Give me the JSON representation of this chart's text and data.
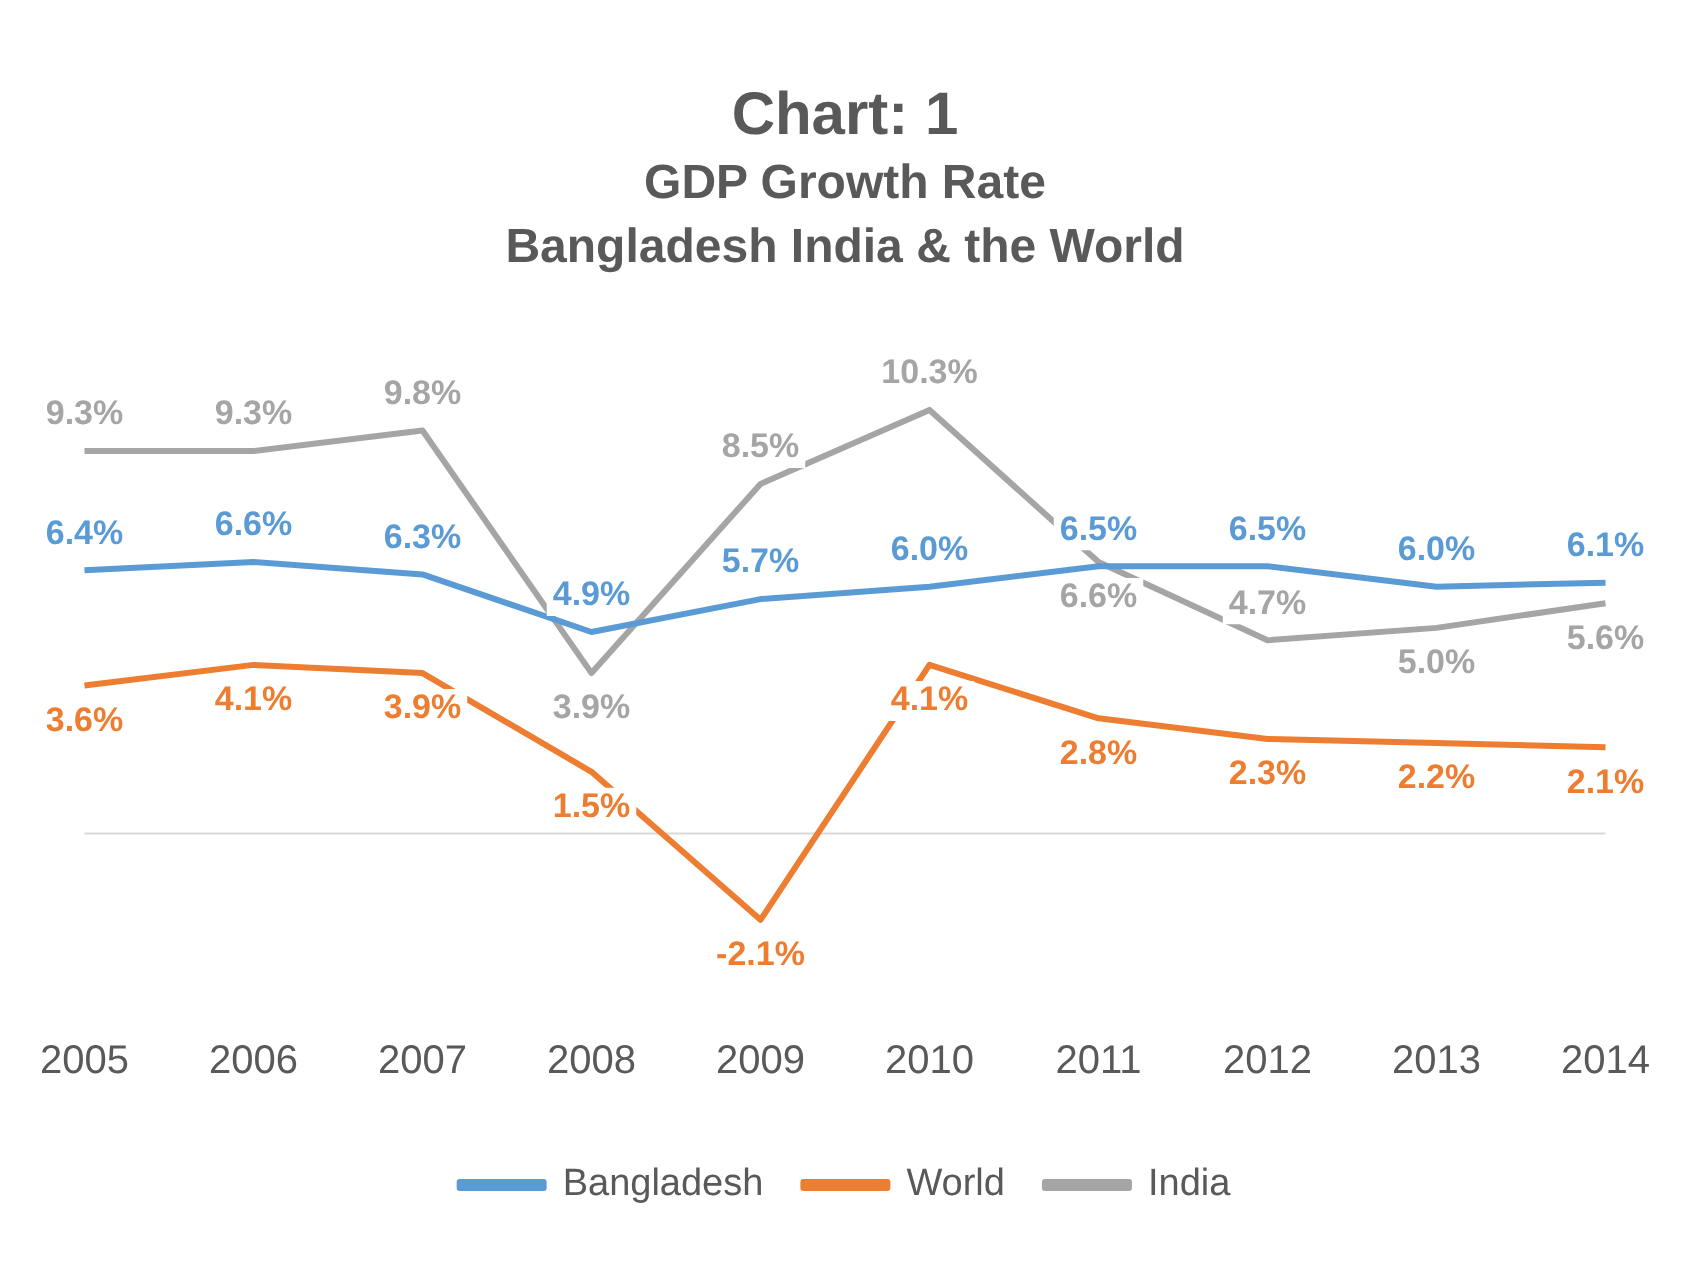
{
  "chart_data": {
    "type": "line",
    "title": "Chart: 1",
    "subtitle": "GDP Growth Rate\nBangladesh India & the World",
    "categories": [
      "2005",
      "2006",
      "2007",
      "2008",
      "2009",
      "2010",
      "2011",
      "2012",
      "2013",
      "2014"
    ],
    "series": [
      {
        "name": "Bangladesh",
        "color": "#5b9bd5",
        "values": [
          6.4,
          6.6,
          6.3,
          4.9,
          5.7,
          6.0,
          6.5,
          6.5,
          6.0,
          6.1
        ],
        "value_labels": [
          "6.4%",
          "6.6%",
          "6.3%",
          "4.9%",
          "5.7%",
          "6.0%",
          "6.5%",
          "6.5%",
          "6.0%",
          "6.1%"
        ]
      },
      {
        "name": "World",
        "color": "#ed7d31",
        "values": [
          3.6,
          4.1,
          3.9,
          1.5,
          -2.1,
          4.1,
          2.8,
          2.3,
          2.2,
          2.1
        ],
        "value_labels": [
          "3.6%",
          "4.1%",
          "3.9%",
          "1.5%",
          "-2.1%",
          "4.1%",
          "2.8%",
          "2.3%",
          "2.2%",
          "2.1%"
        ]
      },
      {
        "name": "India",
        "color": "#a5a5a5",
        "values": [
          9.3,
          9.3,
          9.8,
          3.9,
          8.5,
          10.3,
          6.6,
          4.7,
          5.0,
          5.6
        ],
        "value_labels": [
          "9.3%",
          "9.3%",
          "9.8%",
          "3.9%",
          "8.5%",
          "10.3%",
          "6.6%",
          "4.7%",
          "5.0%",
          "5.6%"
        ]
      }
    ],
    "relative": false,
    "legend": "bottom",
    "grid": false,
    "marker": "none",
    "line_style": "solid"
  }
}
